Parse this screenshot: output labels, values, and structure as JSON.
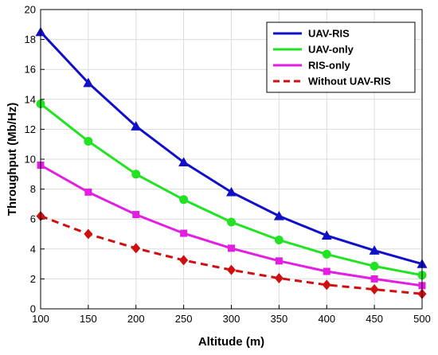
{
  "chart_data": {
    "type": "line",
    "xlabel": "Altitude (m)",
    "ylabel": "Throughput (Mb/Hz)",
    "xlim": [
      100,
      500
    ],
    "ylim": [
      0,
      20
    ],
    "xticks": [
      100,
      150,
      200,
      250,
      300,
      350,
      400,
      450,
      500
    ],
    "yticks": [
      0,
      2,
      4,
      6,
      8,
      10,
      12,
      14,
      16,
      18,
      20
    ],
    "grid": true,
    "legend_position": "top-right",
    "x": [
      100,
      150,
      200,
      250,
      300,
      350,
      400,
      450,
      500
    ],
    "series": [
      {
        "name": "UAV-RIS",
        "values": [
          18.5,
          15.1,
          12.2,
          9.8,
          7.8,
          6.2,
          4.9,
          3.9,
          3.0
        ],
        "color": "#1010c8",
        "marker": "triangle",
        "dashed": false
      },
      {
        "name": "UAV-only",
        "values": [
          13.7,
          11.2,
          9.0,
          7.3,
          5.8,
          4.6,
          3.65,
          2.85,
          2.25
        ],
        "color": "#22e322",
        "marker": "circle",
        "dashed": false
      },
      {
        "name": "RIS-only",
        "values": [
          9.6,
          7.8,
          6.3,
          5.05,
          4.05,
          3.2,
          2.5,
          2.0,
          1.55
        ],
        "color": "#e31ee3",
        "marker": "square",
        "dashed": false
      },
      {
        "name": "Without UAV-RIS",
        "values": [
          6.2,
          5.0,
          4.05,
          3.25,
          2.6,
          2.05,
          1.6,
          1.3,
          1.0
        ],
        "color": "#d01010",
        "marker": "diamond",
        "dashed": true
      }
    ]
  }
}
